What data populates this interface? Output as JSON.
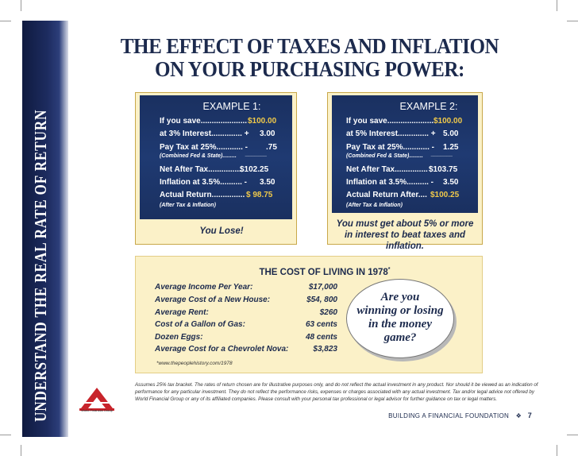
{
  "sidebar": {
    "text": "UNDERSTAND THE REAL RATE OF RETURN"
  },
  "title": {
    "line1": "THE EFFECT OF TAXES AND INFLATION",
    "line2": "ON YOUR PURCHASING POWER:"
  },
  "example1": {
    "heading": "EXAMPLE 1:",
    "save_label": "If you save.....................",
    "save_value": "$100.00",
    "interest_label": "at 3% Interest.............. +",
    "interest_value": "3.00",
    "tax_label": "Pay Tax at 25%............ -",
    "tax_value": ".75",
    "tax_note": "(Combined Fed & State).........",
    "tax_rule": "_______",
    "net_label": "Net After Tax................",
    "net_value": "$102.25",
    "inflation_label": "Inflation at 3.5%.......... -",
    "inflation_value": "3.50",
    "actual_label": "Actual Return...............",
    "actual_value": "$  98.75",
    "actual_note": "(After Tax & Inflation)",
    "verdict": "You Lose!"
  },
  "example2": {
    "heading": "EXAMPLE 2:",
    "save_label": "If you save.....................",
    "save_value": "$100.00",
    "interest_label": "at 5% Interest.............. +",
    "interest_value": "5.00",
    "tax_label": "Pay Tax at 25%............ -",
    "tax_value": "1.25",
    "tax_note": "(Combined Fed & State).........",
    "tax_rule": "_______",
    "net_label": "Net After Tax...............",
    "net_value": "$103.75",
    "inflation_label": "Inflation at 3.5%.......... -",
    "inflation_value": "3.50",
    "actual_label": "Actual Return After....",
    "actual_value": "$100.25",
    "actual_note": "(After Tax & Inflation)",
    "verdict_line1": "You must get about 5% or more",
    "verdict_line2": "in interest to beat taxes and inflation."
  },
  "cost": {
    "title": "THE COST OF LIVING IN 1978",
    "title_mark": "*",
    "rows": [
      {
        "label": "Average Income Per Year:",
        "value": "$17,000"
      },
      {
        "label": "Average Cost of a New House:",
        "value": "$54, 800"
      },
      {
        "label": "Average Rent:",
        "value": "$260"
      },
      {
        "label": "Cost of a Gallon of Gas:",
        "value": "63 cents"
      },
      {
        "label": "Dozen Eggs:",
        "value": "48 cents"
      },
      {
        "label": "Average Cost for a Chevrolet Nova:",
        "value": "$3,823"
      }
    ],
    "source": "*www.thepeoplehistory.com/1978",
    "oval_line1": "Are you",
    "oval_line2": "winning or losing",
    "oval_line3": "in the money",
    "oval_line4": "game?"
  },
  "disclaimer": "Assumes 25% tax bracket.  The rates of return chosen are for illustrative purposes only, and do not reflect the actual investment in any product.  Nor should it be viewed as an indication of performance for any particular investment.  They do not reflect the performance risks, expenses or charges associated with any actual investment.  Tax and/or legal advice not offered by World Financial Group or any of its affiliated companies.  Please consult with your personal tax professional or legal advisor for further guidance on tax or legal matters.",
  "logo": {
    "text": "World Financial Group"
  },
  "footer": {
    "text": "BUILDING A FINANCIAL FOUNDATION",
    "separator": "❖",
    "page": "7"
  },
  "colors": {
    "navy": "#1c2a4d",
    "panel": "#1f3a72",
    "cream": "#fbf1c8",
    "gold": "#f0c94a",
    "logo_red": "#c8242b"
  }
}
